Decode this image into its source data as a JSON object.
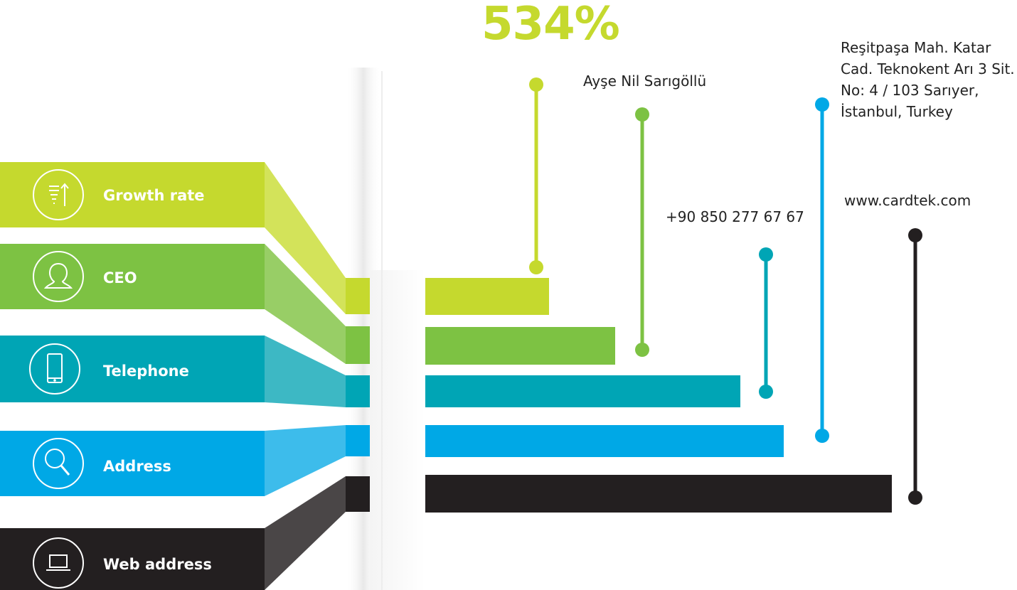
{
  "headline": {
    "text": "534%",
    "color": "#C5D92E"
  },
  "rows": [
    {
      "key": "growth",
      "label": "Growth rate",
      "icon": "growth-chart-icon",
      "color": "#C5D92E",
      "value": "534%"
    },
    {
      "key": "ceo",
      "label": "CEO",
      "icon": "person-icon",
      "color": "#7DC243",
      "value": "Ayşe Nil Sarıgöllü"
    },
    {
      "key": "phone",
      "label": "Telephone",
      "icon": "phone-icon",
      "color": "#00A5B5",
      "value": "+90 850 277 67 67"
    },
    {
      "key": "address",
      "label": "Address",
      "icon": "search-icon",
      "color": "#00A8E6",
      "value": "Reşitpaşa Mah. Katar Cad. Teknokent Arı 3 Sit. No: 4 / 103 Sarıyer, İstanbul, Turkey"
    },
    {
      "key": "web",
      "label": "Web address",
      "icon": "laptop-icon",
      "color": "#231F20",
      "value": "www.cardtek.com"
    }
  ]
}
